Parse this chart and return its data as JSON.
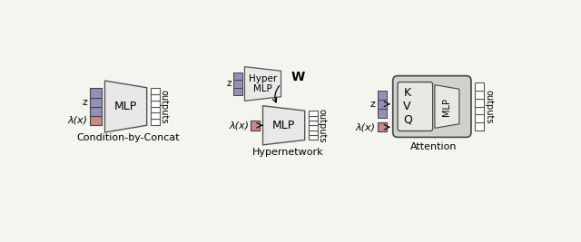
{
  "bg_color": "#f5f5f0",
  "blue_fill": "#9090bb",
  "red_fill": "#cc8888",
  "mlp_fill": "#e8e8e8",
  "output_fill": "#ffffff",
  "edge_c": "#555555",
  "dark_edge": "#444444",
  "section1_label": "Condition-by-Concat",
  "section2_label": "Hypernetwork",
  "section3_label": "Attention",
  "mlp_label": "MLP",
  "hyper_label": "Hyper\nMLP",
  "z_label": "z",
  "lx_label": "λ(x)",
  "w_label": "W",
  "k_label": "K",
  "v_label": "V",
  "q_label": "Q",
  "outputs_label": "outputs",
  "attn_box_fill": "#d0d0cc",
  "attn_inner_fill": "#e8e8e4"
}
